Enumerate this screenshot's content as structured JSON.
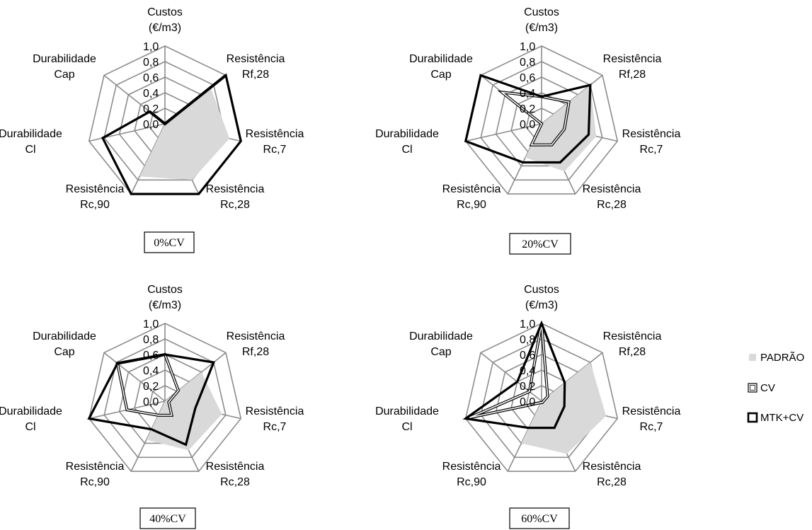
{
  "colors": {
    "padrao_fill": "#d9d9d9",
    "grid": "#8c8c8c",
    "mtk_line": "#000000",
    "cv_line": "#000000"
  },
  "legend": [
    {
      "label": "PADRÃO",
      "key": "padrao"
    },
    {
      "label": "CV",
      "key": "cv"
    },
    {
      "label": "MTK+CV",
      "key": "mtk"
    }
  ],
  "chart_data": [
    {
      "type": "radar",
      "title": "0%CV",
      "axes": [
        [
          "Custos",
          "(€/m3)"
        ],
        [
          "Resistência",
          "Rf,28"
        ],
        [
          "Resistência",
          "Rc,7"
        ],
        [
          "Resistência",
          "Rc,28"
        ],
        [
          "Resistência",
          "Rc,90"
        ],
        [
          "Durabilidade",
          "Cl"
        ],
        [
          "Durabilidade",
          "Cap"
        ]
      ],
      "ticks": [
        "0,0",
        "0,2",
        "0,4",
        "0,6",
        "0,8",
        "1,0"
      ],
      "rlim": [
        0,
        1
      ],
      "series": [
        {
          "key": "padrao",
          "name": "PADRÃO",
          "values": [
            0.0,
            0.75,
            0.85,
            0.8,
            0.75,
            0.0,
            0.0
          ]
        },
        {
          "key": "cv",
          "name": "CV",
          "values": [
            0.0,
            1.0,
            0.0,
            0.0,
            0.0,
            0.0,
            0.25
          ]
        },
        {
          "key": "mtk",
          "name": "MTK+CV",
          "values": [
            0.0,
            1.0,
            1.0,
            1.0,
            1.0,
            0.82,
            0.25
          ]
        }
      ]
    },
    {
      "type": "radar",
      "title": "20%CV",
      "axes": [
        [
          "Custos",
          "(€/m3)"
        ],
        [
          "Resistência",
          "Rf,28"
        ],
        [
          "Resistência",
          "Rc,7"
        ],
        [
          "Resistência",
          "Rc,28"
        ],
        [
          "Resistência",
          "Rc,90"
        ],
        [
          "Durabilidade",
          "Cl"
        ],
        [
          "Durabilidade",
          "Cap"
        ]
      ],
      "ticks": [
        "0,0",
        "0,2",
        "0,4",
        "0,6",
        "0,8",
        "1,0"
      ],
      "rlim": [
        0,
        1
      ],
      "series": [
        {
          "key": "padrao",
          "name": "PADRÃO",
          "values": [
            0.0,
            0.8,
            0.72,
            0.68,
            0.48,
            0.0,
            0.0
          ]
        },
        {
          "key": "cv",
          "name": "CV",
          "values": [
            0.35,
            0.45,
            0.3,
            0.3,
            0.3,
            0.0,
            0.65
          ]
        },
        {
          "key": "mtk",
          "name": "MTK+CV",
          "values": [
            0.35,
            0.8,
            0.62,
            0.55,
            0.55,
            1.0,
            1.0
          ]
        }
      ]
    },
    {
      "type": "radar",
      "title": "40%CV",
      "axes": [
        [
          "Custos",
          "(€/m3)"
        ],
        [
          "Resistência",
          "Rf,28"
        ],
        [
          "Resistência",
          "Rc,7"
        ],
        [
          "Resistência",
          "Rc,28"
        ],
        [
          "Resistência",
          "Rc,90"
        ],
        [
          "Durabilidade",
          "Cl"
        ],
        [
          "Durabilidade",
          "Cap"
        ]
      ],
      "ticks": [
        "0,0",
        "0,2",
        "0,4",
        "0,6",
        "0,8",
        "1,0"
      ],
      "rlim": [
        0,
        1
      ],
      "series": [
        {
          "key": "padrao",
          "name": "PADRÃO",
          "values": [
            0.0,
            0.6,
            0.75,
            0.7,
            0.55,
            0.0,
            0.0
          ]
        },
        {
          "key": "cv",
          "name": "CV",
          "values": [
            0.6,
            0.22,
            0.05,
            0.2,
            0.2,
            0.5,
            0.78
          ]
        },
        {
          "key": "mtk",
          "name": "MTK+CV",
          "values": [
            0.6,
            0.8,
            0.4,
            0.62,
            0.4,
            1.0,
            0.78
          ]
        }
      ]
    },
    {
      "type": "radar",
      "title": "60%CV",
      "axes": [
        [
          "Custos",
          "(€/m3)"
        ],
        [
          "Resistência",
          "Rf,28"
        ],
        [
          "Resistência",
          "Rc,7"
        ],
        [
          "Resistência",
          "Rc,28"
        ],
        [
          "Resistência",
          "Rc,90"
        ],
        [
          "Durabilidade",
          "Cl"
        ],
        [
          "Durabilidade",
          "Cap"
        ]
      ],
      "ticks": [
        "0,0",
        "0,2",
        "0,4",
        "0,6",
        "0,8",
        "1,0"
      ],
      "rlim": [
        0,
        1
      ],
      "series": [
        {
          "key": "padrao",
          "name": "PADRÃO",
          "values": [
            0.0,
            0.8,
            0.85,
            0.75,
            0.6,
            0.0,
            0.0
          ]
        },
        {
          "key": "cv",
          "name": "CV",
          "values": [
            1.0,
            0.1,
            0.02,
            0.02,
            0.02,
            0.95,
            0.2
          ]
        },
        {
          "key": "mtk",
          "name": "MTK+CV",
          "values": [
            1.0,
            0.38,
            0.3,
            0.38,
            0.38,
            1.0,
            0.4
          ]
        }
      ]
    }
  ]
}
